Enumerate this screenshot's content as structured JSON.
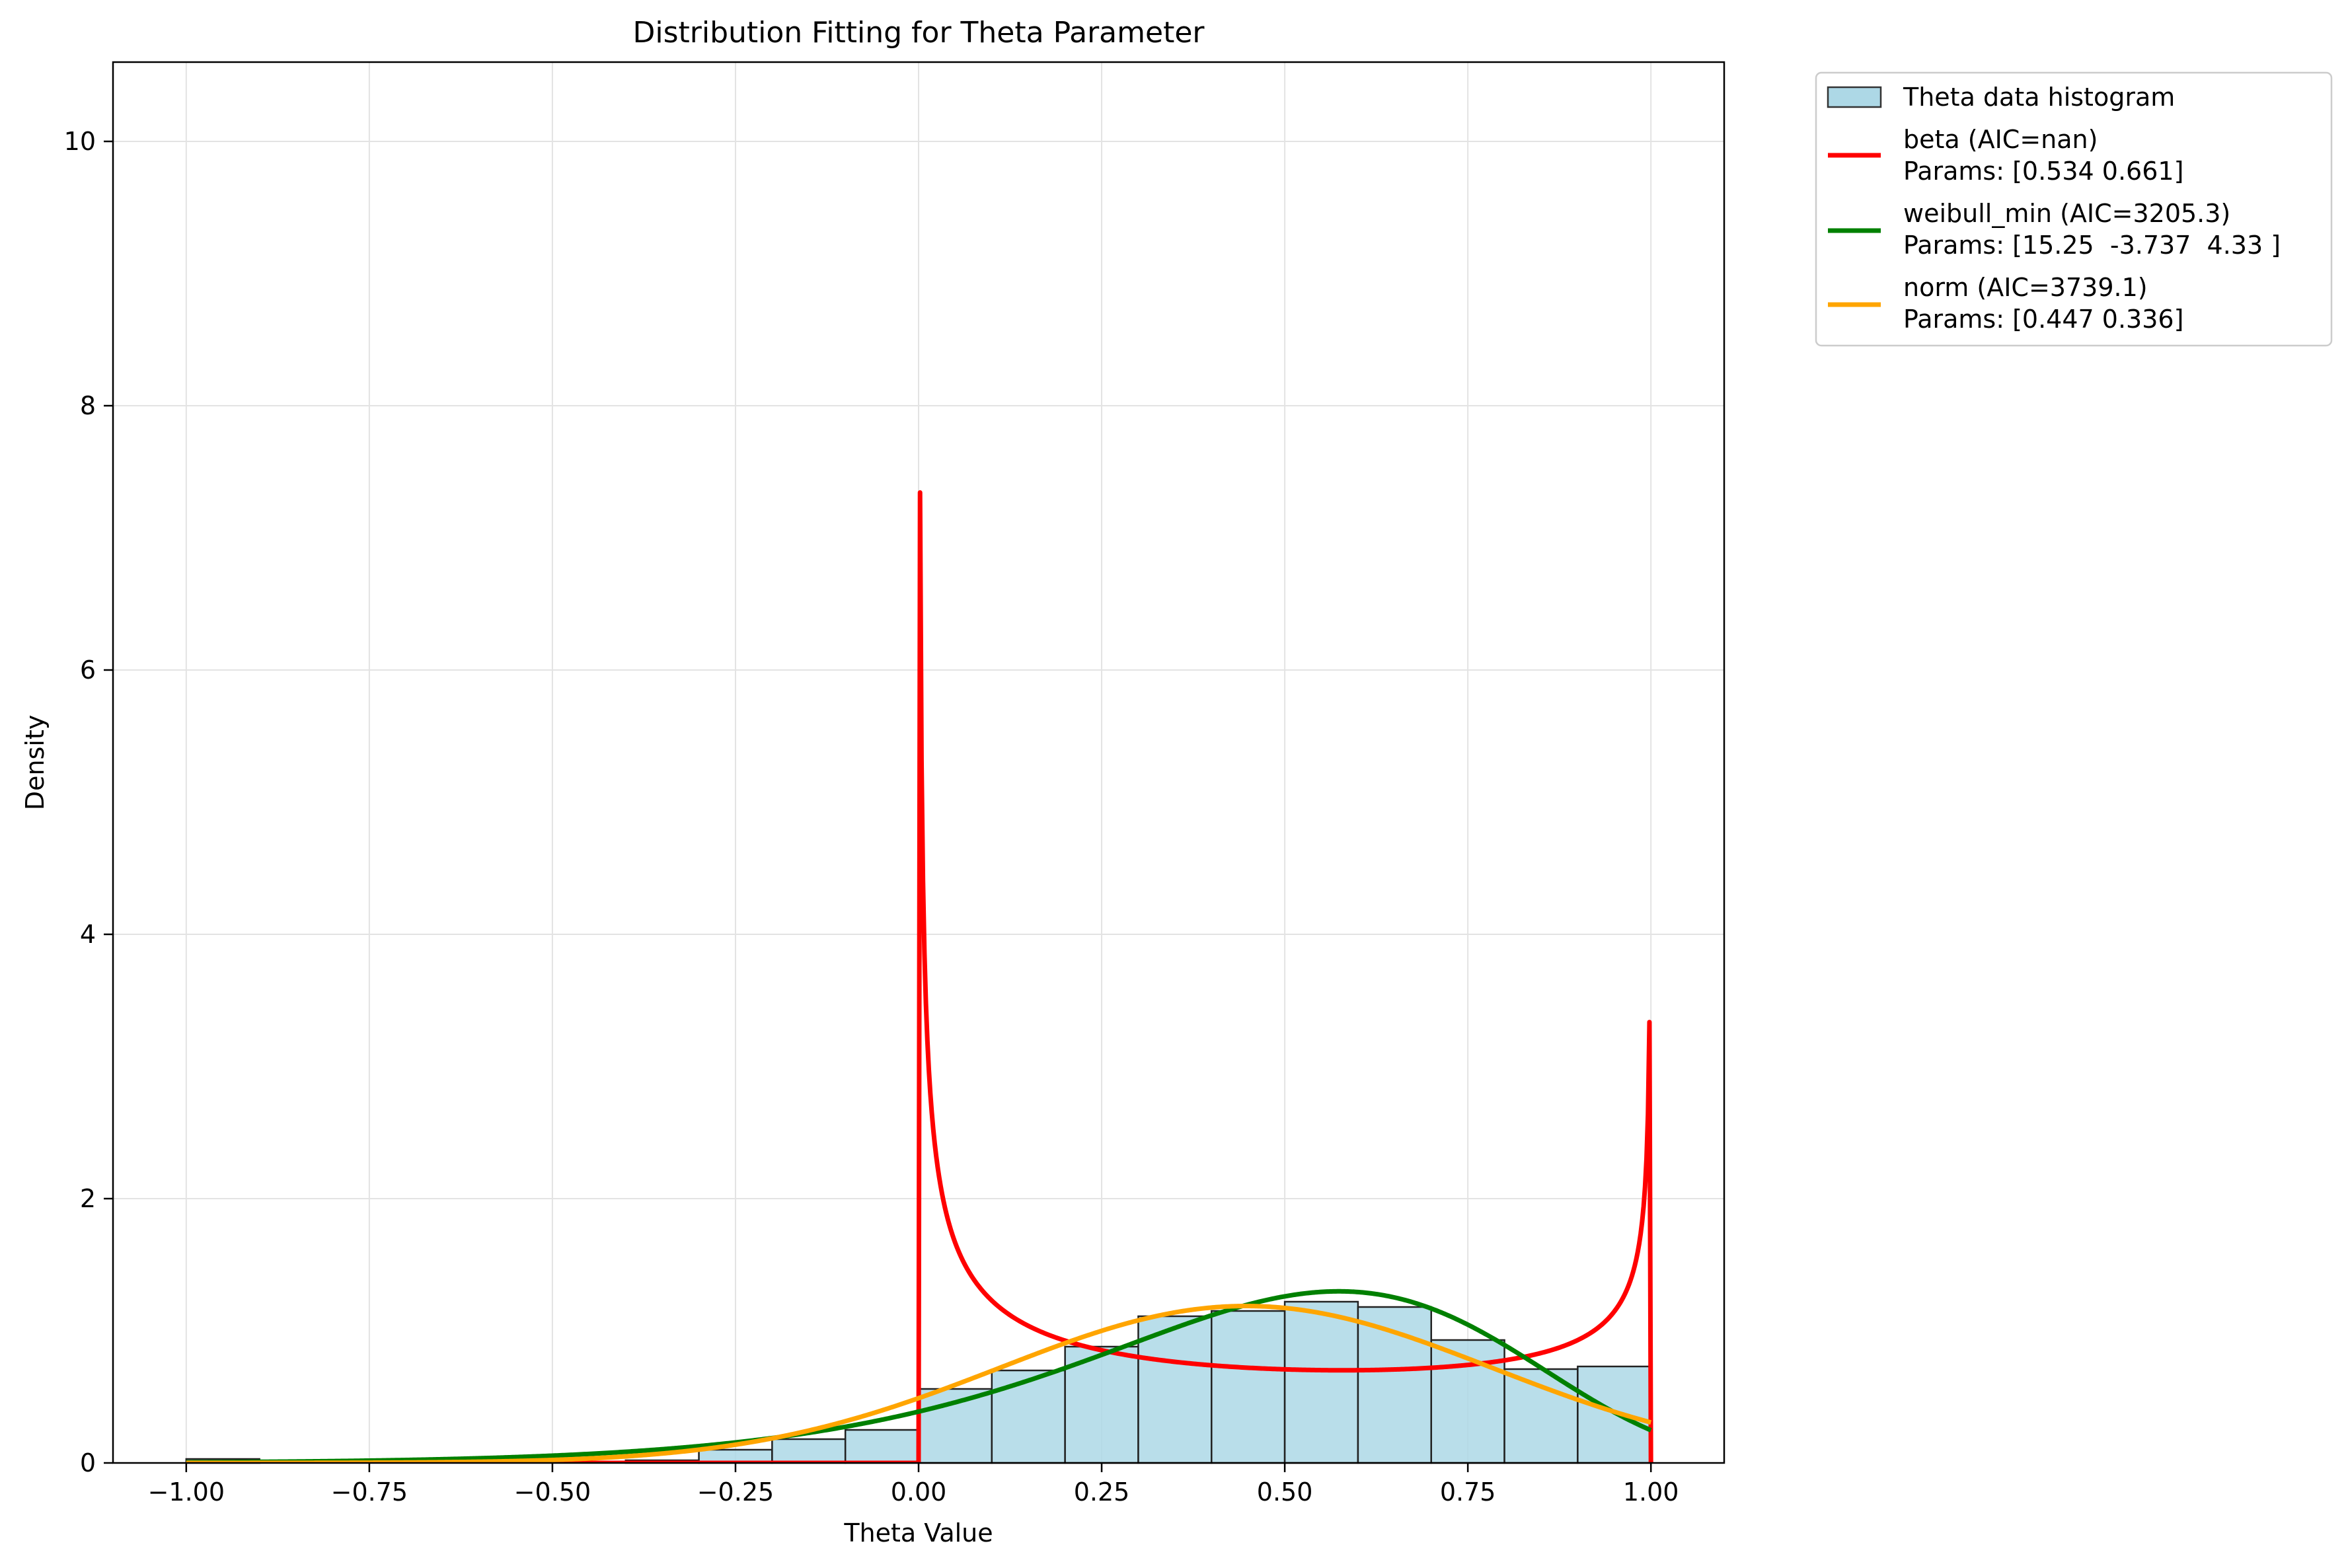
{
  "chart_data": {
    "type": "histogram-with-fitted-curves",
    "title": "Distribution Fitting for Theta Parameter",
    "xlabel": "Theta Value",
    "ylabel": "Density",
    "xlim": [
      -1.1,
      1.1
    ],
    "ylim": [
      0,
      10.6
    ],
    "xticks": [
      -1.0,
      -0.75,
      -0.5,
      -0.25,
      0.0,
      0.25,
      0.5,
      0.75,
      1.0
    ],
    "xtick_labels": [
      "−1.00",
      "−0.75",
      "−0.50",
      "−0.25",
      "0.00",
      "0.25",
      "0.50",
      "0.75",
      "1.00"
    ],
    "yticks": [
      0,
      2,
      4,
      6,
      8,
      10
    ],
    "ytick_labels": [
      "0",
      "2",
      "4",
      "6",
      "8",
      "10"
    ],
    "grid": true,
    "legend_position": "outside-top-right",
    "histogram": {
      "name": "Theta data histogram",
      "face_color": "#add8e6",
      "edge_color": "#222222",
      "bin_edges": [
        -1.0,
        -0.9,
        -0.8,
        -0.7,
        -0.6,
        -0.5,
        -0.4,
        -0.3,
        -0.2,
        -0.1,
        0.0,
        0.1,
        0.2,
        0.3,
        0.4,
        0.5,
        0.6,
        0.7,
        0.8,
        0.9,
        1.0
      ],
      "densities": [
        0.03,
        0.0,
        0.0,
        0.0,
        0.0,
        0.0,
        0.02,
        0.1,
        0.18,
        0.25,
        0.56,
        0.7,
        0.88,
        1.11,
        1.15,
        1.22,
        1.18,
        0.93,
        0.71,
        0.73
      ]
    },
    "series": [
      {
        "name": "beta (AIC=nan)",
        "params_label": "Params: [0.534 0.661]",
        "color": "#ff0000",
        "distribution": "beta",
        "params": [
          0.534,
          0.661
        ],
        "domain": [
          0.0,
          1.0
        ]
      },
      {
        "name": "weibull_min (AIC=3205.3)",
        "params_label": "Params: [15.25  -3.737  4.33 ]",
        "color": "#008000",
        "distribution": "weibull_min",
        "params": [
          15.25,
          -3.737,
          4.33
        ],
        "domain": [
          -1.0,
          1.0
        ]
      },
      {
        "name": "norm (AIC=3739.1)",
        "params_label": "Params: [0.447 0.336]",
        "color": "#ffa500",
        "distribution": "norm",
        "params": [
          0.447,
          0.336
        ],
        "domain": [
          -1.0,
          1.0
        ]
      }
    ]
  }
}
